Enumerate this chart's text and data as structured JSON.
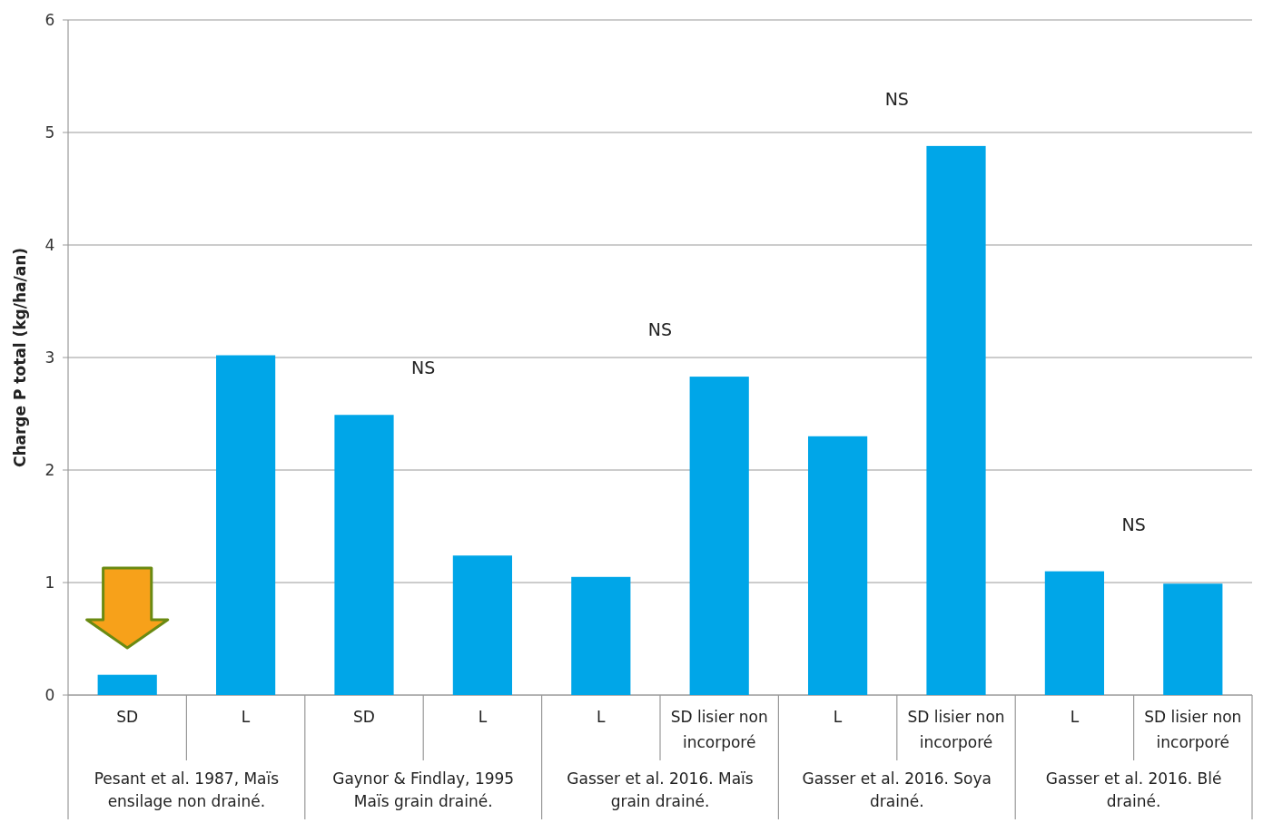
{
  "chart_data": {
    "type": "bar",
    "ylabel": "Charge P total (kg/ha/an)",
    "categories": [
      "SD",
      "L",
      "SD",
      "L",
      "L",
      "SD lisier non incorporé",
      "L",
      "SD lisier non incorporé",
      "L",
      "SD lisier non incorporé"
    ],
    "values": [
      0.18,
      3.02,
      2.49,
      1.24,
      1.05,
      2.83,
      2.3,
      4.88,
      1.1,
      0.99
    ],
    "color": "#00a6e8",
    "ylim": [
      0,
      6
    ],
    "yticks": [
      0,
      1,
      2,
      3,
      4,
      5,
      6
    ],
    "grid": "y",
    "annotations": [
      "Pesant et al. 1987, Maïs ensilage non drainé.",
      "Gaynor & Findlay, 1995 Maïs grain drainé.",
      "Gasser et al. 2016. Maïs grain drainé.",
      "Gasser et al. 2016. Soya drainé.",
      "Gasser et al. 2016. Blé drainé.",
      "NS",
      "NS",
      "NS",
      "NS"
    ]
  }
}
